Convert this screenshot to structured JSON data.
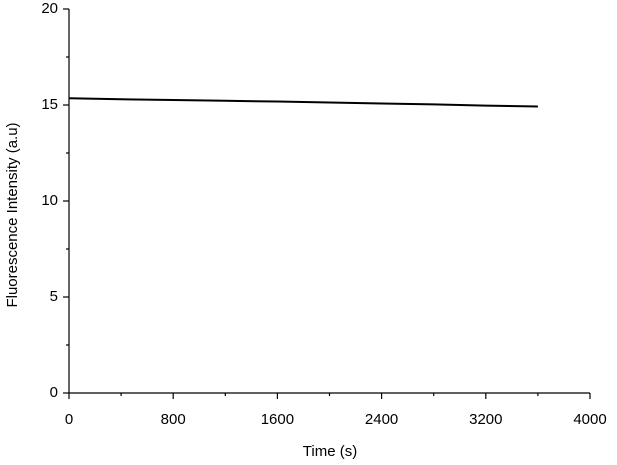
{
  "chart_data": {
    "type": "line",
    "x_label": "Time (s)",
    "y_label": "Fluorescence Intensity (a.u)",
    "x": [
      0,
      400,
      800,
      1200,
      1600,
      2000,
      2400,
      2800,
      3200,
      3600
    ],
    "series": [
      {
        "color": "#000000",
        "values": [
          15.35,
          15.3,
          15.26,
          15.22,
          15.18,
          15.13,
          15.08,
          15.03,
          14.97,
          14.92
        ]
      }
    ],
    "xlim": [
      0,
      4000
    ],
    "xticks": [
      0,
      800,
      1600,
      2400,
      3200,
      4000
    ],
    "ylim": [
      0,
      20
    ],
    "yticks": [
      0,
      5,
      10,
      15,
      20
    ],
    "minor_ticks": true,
    "grid": false
  }
}
